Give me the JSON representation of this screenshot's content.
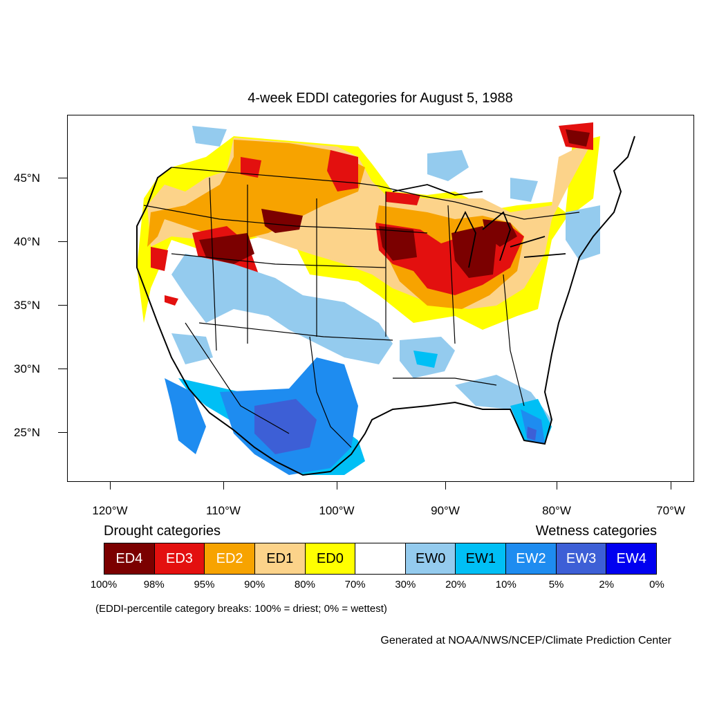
{
  "title": "4-week EDDI categories for August 5, 1988",
  "lat_labels": [
    "45°N",
    "40°N",
    "35°N",
    "30°N",
    "25°N"
  ],
  "lon_labels": [
    "120°W",
    "110°W",
    "100°W",
    "90°W",
    "80°W",
    "70°W"
  ],
  "legend": {
    "drought_heading": "Drought categories",
    "wetness_heading": "Wetness categories",
    "categories": [
      {
        "label": "ED4",
        "color": "#7b0000",
        "text_color": "#ffffff"
      },
      {
        "label": "ED3",
        "color": "#e3100f",
        "text_color": "#ffffff"
      },
      {
        "label": "ED2",
        "color": "#f7a300",
        "text_color": "#ffffff"
      },
      {
        "label": "ED1",
        "color": "#fcd38a",
        "text_color": "#000000"
      },
      {
        "label": "ED0",
        "color": "#ffff00",
        "text_color": "#000000"
      },
      {
        "label": "",
        "color": "#ffffff",
        "text_color": "#000000"
      },
      {
        "label": "EW0",
        "color": "#94cbee",
        "text_color": "#000000"
      },
      {
        "label": "EW1",
        "color": "#00bff5",
        "text_color": "#000000"
      },
      {
        "label": "EW2",
        "color": "#1e8cf0",
        "text_color": "#ffffff"
      },
      {
        "label": "EW3",
        "color": "#3d5fd6",
        "text_color": "#ffffff"
      },
      {
        "label": "EW4",
        "color": "#0000f0",
        "text_color": "#ffffff"
      }
    ],
    "breaks": [
      "100%",
      "98%",
      "95%",
      "90%",
      "80%",
      "70%",
      "30%",
      "20%",
      "10%",
      "5%",
      "2%",
      "0%"
    ]
  },
  "note": "(EDDI-percentile category breaks: 100% = driest; 0% = wettest)",
  "credit": "Generated at NOAA/NWS/NCEP/Climate Prediction Center"
}
